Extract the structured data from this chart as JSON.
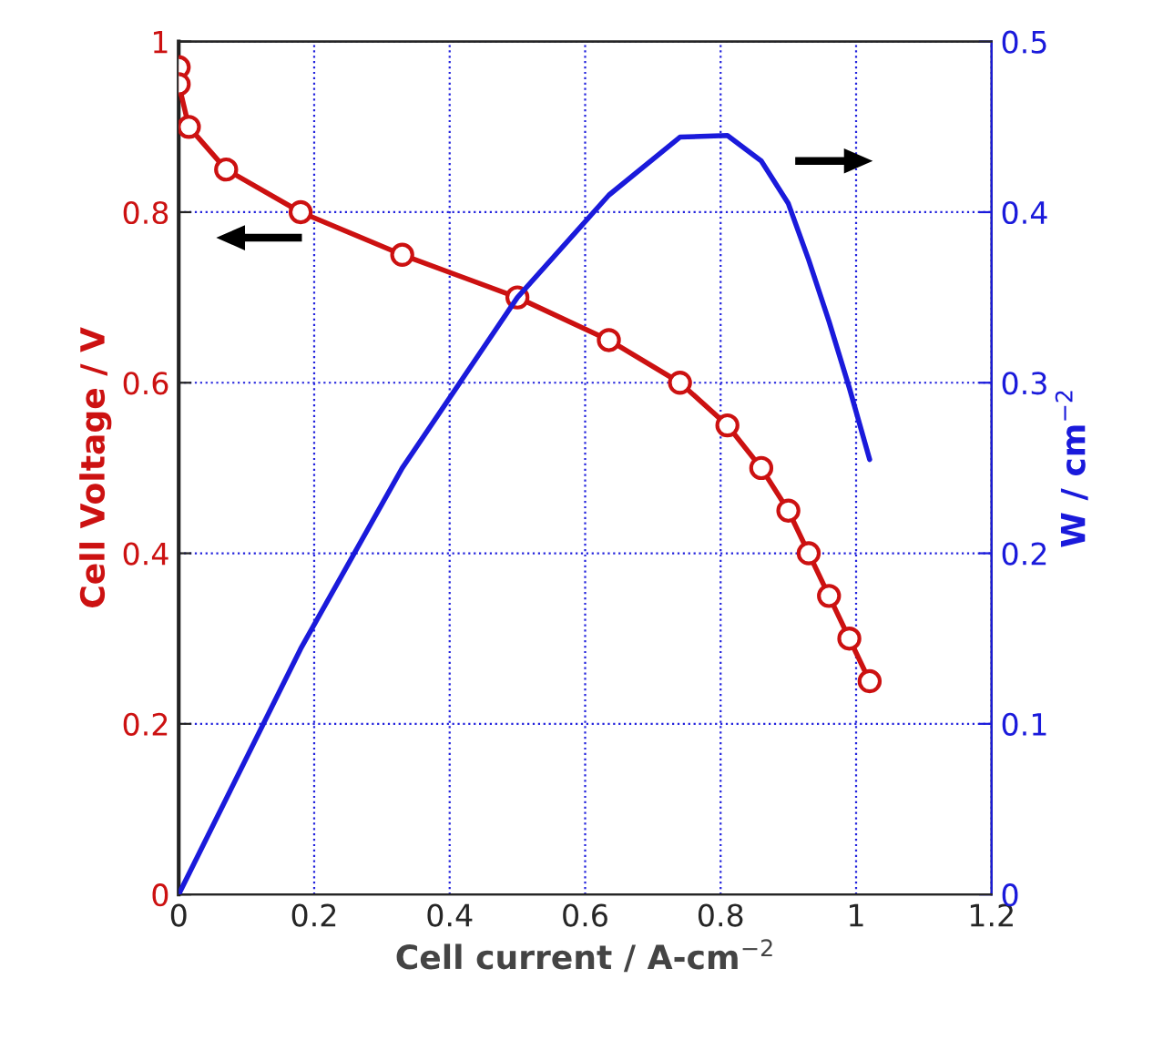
{
  "chart_data": {
    "type": "line",
    "xlabel": "Cell current / A-cm$^{−2}$",
    "ylabel": "Cell Voltage / V",
    "y2label": "W / cm$^{−2}$",
    "series": [
      {
        "type": "line",
        "color": "#cc1111",
        "marker": "circle",
        "x": [
          0,
          0,
          0.015,
          0.07,
          0.18,
          0.33,
          0.5,
          0.635,
          0.74,
          0.81,
          0.86,
          0.9,
          0.93,
          0.96,
          0.99,
          1.02
        ],
        "values": [
          0.97,
          0.95,
          0.9,
          0.85,
          0.8,
          0.75,
          0.7,
          0.65,
          0.6,
          0.55,
          0.5,
          0.45,
          0.4,
          0.35,
          0.3,
          0.25
        ]
      },
      {
        "type": "line",
        "color": "#1a1adb",
        "axis": "y2",
        "x": [
          0,
          0.18,
          0.33,
          0.5,
          0.635,
          0.74,
          0.81,
          0.86,
          0.9,
          0.93,
          0.96,
          0.99,
          1.02
        ],
        "values": [
          0,
          0.144,
          0.25,
          0.35,
          0.41,
          0.444,
          0.445,
          0.43,
          0.405,
          0.372,
          0.336,
          0.297,
          0.255
        ]
      }
    ],
    "xlim": [
      0,
      1.2
    ],
    "xticks": [
      0,
      0.2,
      0.4,
      0.6,
      0.8,
      1,
      1.2
    ],
    "ylim": [
      0,
      1
    ],
    "yticks": [
      0,
      0.2,
      0.4,
      0.6,
      0.8,
      1
    ],
    "y2lim": [
      0,
      0.5
    ],
    "y2ticks": [
      0,
      0.1,
      0.2,
      0.3,
      0.4,
      0.5
    ],
    "grid": true,
    "line_style": "solid"
  }
}
